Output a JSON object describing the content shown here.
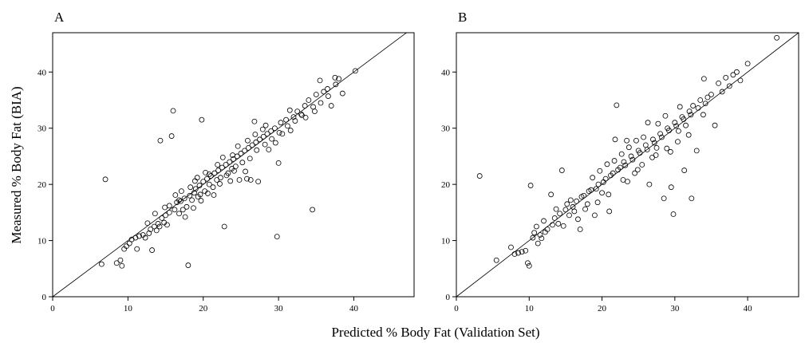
{
  "figure": {
    "xlabel": "Predicted % Body Fat (Validation Set)",
    "ylabel": "Measured % Body Fat (BIA)"
  },
  "chart_data": [
    {
      "type": "scatter",
      "panel_label": "A",
      "xlim": [
        0,
        48
      ],
      "ylim": [
        0,
        47
      ],
      "xticks": [
        0,
        10,
        20,
        30,
        40
      ],
      "yticks": [
        0,
        10,
        20,
        30,
        40
      ],
      "identity_line": true,
      "marker": "open-circle",
      "grid": false,
      "points": [
        [
          6.5,
          5.8
        ],
        [
          7.0,
          20.9
        ],
        [
          8.5,
          6.0
        ],
        [
          9.0,
          6.5
        ],
        [
          9.2,
          5.5
        ],
        [
          9.5,
          8.5
        ],
        [
          9.8,
          9.0
        ],
        [
          10.2,
          9.5
        ],
        [
          10.5,
          10.2
        ],
        [
          11.0,
          10.5
        ],
        [
          11.2,
          8.5
        ],
        [
          11.5,
          10.8
        ],
        [
          12.0,
          11.0
        ],
        [
          12.3,
          10.5
        ],
        [
          12.8,
          11.3
        ],
        [
          13.0,
          12.0
        ],
        [
          13.2,
          8.3
        ],
        [
          13.5,
          12.5
        ],
        [
          13.8,
          11.8
        ],
        [
          14.0,
          13.0
        ],
        [
          14.2,
          12.5
        ],
        [
          14.3,
          27.8
        ],
        [
          14.5,
          14.0
        ],
        [
          14.8,
          13.2
        ],
        [
          15.0,
          14.5
        ],
        [
          15.2,
          12.8
        ],
        [
          15.5,
          15.0
        ],
        [
          15.8,
          28.6
        ],
        [
          16.0,
          33.1
        ],
        [
          16.2,
          15.5
        ],
        [
          16.5,
          16.8
        ],
        [
          16.8,
          14.8
        ],
        [
          17.0,
          17.0
        ],
        [
          17.3,
          15.5
        ],
        [
          17.5,
          17.5
        ],
        [
          17.8,
          16.0
        ],
        [
          18.0,
          5.6
        ],
        [
          18.2,
          18.0
        ],
        [
          18.5,
          17.2
        ],
        [
          18.8,
          18.5
        ],
        [
          19.0,
          19.2
        ],
        [
          19.3,
          17.8
        ],
        [
          19.5,
          19.8
        ],
        [
          19.8,
          31.5
        ],
        [
          20.0,
          20.5
        ],
        [
          20.2,
          18.8
        ],
        [
          20.5,
          21.0
        ],
        [
          20.8,
          20.0
        ],
        [
          21.0,
          21.5
        ],
        [
          21.3,
          19.5
        ],
        [
          21.5,
          22.0
        ],
        [
          21.8,
          20.8
        ],
        [
          22.0,
          22.5
        ],
        [
          22.3,
          21.2
        ],
        [
          22.5,
          23.0
        ],
        [
          22.8,
          12.5
        ],
        [
          23.0,
          23.5
        ],
        [
          23.3,
          22.0
        ],
        [
          23.5,
          24.0
        ],
        [
          23.8,
          22.8
        ],
        [
          24.0,
          24.5
        ],
        [
          24.3,
          23.2
        ],
        [
          24.5,
          25.0
        ],
        [
          24.8,
          20.8
        ],
        [
          25.0,
          25.5
        ],
        [
          25.5,
          26.0
        ],
        [
          25.8,
          21.0
        ],
        [
          26.0,
          26.5
        ],
        [
          26.3,
          20.8
        ],
        [
          26.5,
          27.0
        ],
        [
          26.8,
          31.2
        ],
        [
          27.0,
          27.5
        ],
        [
          27.3,
          20.5
        ],
        [
          27.5,
          28.0
        ],
        [
          28.0,
          28.5
        ],
        [
          28.3,
          30.5
        ],
        [
          28.5,
          29.0
        ],
        [
          29.0,
          29.5
        ],
        [
          29.5,
          30.0
        ],
        [
          29.8,
          10.7
        ],
        [
          30.0,
          23.8
        ],
        [
          30.3,
          31.0
        ],
        [
          30.5,
          29.0
        ],
        [
          31.0,
          31.5
        ],
        [
          31.5,
          33.2
        ],
        [
          32.0,
          32.0
        ],
        [
          32.5,
          33.0
        ],
        [
          33.0,
          32.5
        ],
        [
          33.5,
          34.0
        ],
        [
          34.0,
          35.0
        ],
        [
          34.5,
          15.5
        ],
        [
          34.8,
          33.0
        ],
        [
          35.0,
          36.0
        ],
        [
          35.5,
          38.5
        ],
        [
          36.0,
          36.5
        ],
        [
          36.5,
          37.0
        ],
        [
          37.0,
          34.0
        ],
        [
          37.5,
          39.0
        ],
        [
          38.0,
          38.8
        ],
        [
          38.5,
          36.2
        ],
        [
          40.2,
          40.2
        ],
        [
          15.5,
          16.2
        ],
        [
          16.8,
          17.2
        ],
        [
          18.3,
          19.5
        ],
        [
          19.6,
          18.2
        ],
        [
          20.8,
          21.8
        ],
        [
          21.9,
          23.5
        ],
        [
          22.6,
          24.8
        ],
        [
          23.9,
          25.2
        ],
        [
          24.6,
          26.8
        ],
        [
          25.9,
          27.8
        ],
        [
          26.9,
          28.9
        ],
        [
          27.9,
          29.8
        ],
        [
          22.2,
          20.1
        ],
        [
          23.1,
          21.6
        ],
        [
          24.1,
          22.4
        ],
        [
          25.2,
          23.9
        ],
        [
          26.2,
          24.6
        ],
        [
          27.1,
          26.1
        ],
        [
          28.2,
          27.1
        ],
        [
          29.1,
          28.1
        ],
        [
          30.1,
          29.2
        ],
        [
          31.2,
          30.4
        ],
        [
          32.2,
          31.3
        ],
        [
          33.1,
          32.3
        ],
        [
          17.6,
          14.2
        ],
        [
          18.7,
          15.8
        ],
        [
          19.7,
          17.1
        ],
        [
          20.6,
          18.4
        ],
        [
          14.9,
          15.9
        ],
        [
          13.6,
          14.8
        ],
        [
          12.6,
          13.1
        ],
        [
          16.3,
          18.1
        ],
        [
          17.1,
          18.8
        ],
        [
          19.2,
          21.2
        ],
        [
          20.3,
          22.1
        ],
        [
          28.7,
          26.2
        ],
        [
          29.6,
          27.4
        ],
        [
          31.6,
          29.6
        ],
        [
          33.6,
          31.9
        ],
        [
          34.6,
          33.8
        ],
        [
          35.6,
          34.5
        ],
        [
          36.6,
          35.7
        ],
        [
          37.6,
          37.8
        ],
        [
          18.9,
          20.6
        ],
        [
          21.4,
          18.1
        ],
        [
          23.6,
          20.6
        ],
        [
          25.6,
          22.3
        ]
      ]
    },
    {
      "type": "scatter",
      "panel_label": "B",
      "xlim": [
        0,
        47
      ],
      "ylim": [
        0,
        47
      ],
      "xticks": [
        0,
        10,
        20,
        30,
        40
      ],
      "yticks": [
        0,
        10,
        20,
        30,
        40
      ],
      "identity_line": true,
      "marker": "open-circle",
      "grid": false,
      "points": [
        [
          3.2,
          21.5
        ],
        [
          5.5,
          6.5
        ],
        [
          7.5,
          8.8
        ],
        [
          8.0,
          7.6
        ],
        [
          8.5,
          7.8
        ],
        [
          9.0,
          8.0
        ],
        [
          9.5,
          8.2
        ],
        [
          9.8,
          6.0
        ],
        [
          10.0,
          5.5
        ],
        [
          10.2,
          19.8
        ],
        [
          10.5,
          10.5
        ],
        [
          11.0,
          12.5
        ],
        [
          11.5,
          11.0
        ],
        [
          12.0,
          13.5
        ],
        [
          12.5,
          12.0
        ],
        [
          13.0,
          18.2
        ],
        [
          13.5,
          14.0
        ],
        [
          14.0,
          13.0
        ],
        [
          14.5,
          22.5
        ],
        [
          15.0,
          15.5
        ],
        [
          15.5,
          14.5
        ],
        [
          16.0,
          16.0
        ],
        [
          16.5,
          17.0
        ],
        [
          17.0,
          12.0
        ],
        [
          17.5,
          18.0
        ],
        [
          18.0,
          16.5
        ],
        [
          18.5,
          19.0
        ],
        [
          19.0,
          14.5
        ],
        [
          19.5,
          20.0
        ],
        [
          20.0,
          18.5
        ],
        [
          20.5,
          21.0
        ],
        [
          21.0,
          15.2
        ],
        [
          21.5,
          22.0
        ],
        [
          21.8,
          28.0
        ],
        [
          22.0,
          34.1
        ],
        [
          22.5,
          23.0
        ],
        [
          23.0,
          24.0
        ],
        [
          23.5,
          20.5
        ],
        [
          24.0,
          25.0
        ],
        [
          24.5,
          22.0
        ],
        [
          25.0,
          26.0
        ],
        [
          25.5,
          23.5
        ],
        [
          26.0,
          27.0
        ],
        [
          26.3,
          31.0
        ],
        [
          26.5,
          20.0
        ],
        [
          27.0,
          28.0
        ],
        [
          27.5,
          26.5
        ],
        [
          28.0,
          29.0
        ],
        [
          28.5,
          17.5
        ],
        [
          29.0,
          30.0
        ],
        [
          29.5,
          19.5
        ],
        [
          29.8,
          14.7
        ],
        [
          30.0,
          31.0
        ],
        [
          30.5,
          29.5
        ],
        [
          31.0,
          32.0
        ],
        [
          31.3,
          22.5
        ],
        [
          31.5,
          30.5
        ],
        [
          32.0,
          33.0
        ],
        [
          32.3,
          17.5
        ],
        [
          32.5,
          34.0
        ],
        [
          33.0,
          26.0
        ],
        [
          33.5,
          35.0
        ],
        [
          34.0,
          38.8
        ],
        [
          34.5,
          35.5
        ],
        [
          35.0,
          36.0
        ],
        [
          35.5,
          30.5
        ],
        [
          36.0,
          38.0
        ],
        [
          36.5,
          36.5
        ],
        [
          37.0,
          39.0
        ],
        [
          37.5,
          37.5
        ],
        [
          38.0,
          39.5
        ],
        [
          38.5,
          40.0
        ],
        [
          39.0,
          38.5
        ],
        [
          40.0,
          41.5
        ],
        [
          44.0,
          46.1
        ],
        [
          11.2,
          9.5
        ],
        [
          12.2,
          11.5
        ],
        [
          13.2,
          12.8
        ],
        [
          14.2,
          14.8
        ],
        [
          15.2,
          16.5
        ],
        [
          16.2,
          15.2
        ],
        [
          17.2,
          17.8
        ],
        [
          18.2,
          18.8
        ],
        [
          19.2,
          19.2
        ],
        [
          20.2,
          20.4
        ],
        [
          21.2,
          21.6
        ],
        [
          22.2,
          22.6
        ],
        [
          23.2,
          23.4
        ],
        [
          24.2,
          24.4
        ],
        [
          25.2,
          25.6
        ],
        [
          26.2,
          26.2
        ],
        [
          27.2,
          27.4
        ],
        [
          28.2,
          28.4
        ],
        [
          29.2,
          29.6
        ],
        [
          30.2,
          30.4
        ],
        [
          31.2,
          31.6
        ],
        [
          32.2,
          32.4
        ],
        [
          33.2,
          33.6
        ],
        [
          34.2,
          34.4
        ],
        [
          18.7,
          21.2
        ],
        [
          19.7,
          22.4
        ],
        [
          20.7,
          23.6
        ],
        [
          21.7,
          24.2
        ],
        [
          22.7,
          25.4
        ],
        [
          23.7,
          26.6
        ],
        [
          24.7,
          27.8
        ],
        [
          25.7,
          28.4
        ],
        [
          27.7,
          30.8
        ],
        [
          28.7,
          32.2
        ],
        [
          30.7,
          33.8
        ],
        [
          16.7,
          13.8
        ],
        [
          17.7,
          15.6
        ],
        [
          19.4,
          16.8
        ],
        [
          20.9,
          18.2
        ],
        [
          22.9,
          20.8
        ],
        [
          24.9,
          22.6
        ],
        [
          26.9,
          24.8
        ],
        [
          28.9,
          26.4
        ],
        [
          30.4,
          27.6
        ],
        [
          33.9,
          32.4
        ],
        [
          10.7,
          11.4
        ],
        [
          11.7,
          10.4
        ],
        [
          13.7,
          15.6
        ],
        [
          14.7,
          12.6
        ],
        [
          15.7,
          17.2
        ],
        [
          23.4,
          27.8
        ],
        [
          27.4,
          25.2
        ],
        [
          29.4,
          25.8
        ],
        [
          31.9,
          28.8
        ]
      ]
    }
  ]
}
